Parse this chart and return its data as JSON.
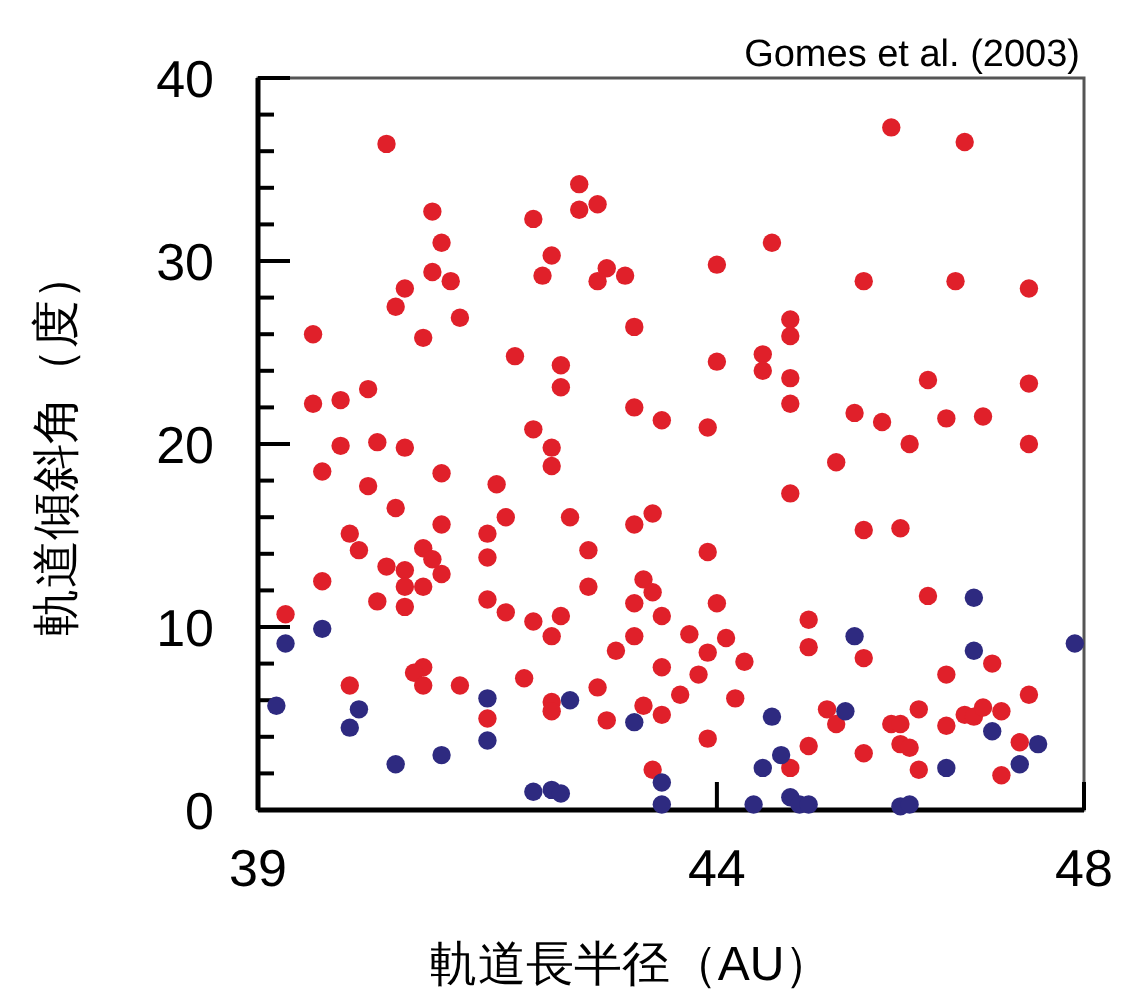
{
  "chart_data": {
    "type": "scatter",
    "xlabel": "軌道長半径（AU）",
    "ylabel": "軌道傾斜角（度）",
    "annotations": [
      "Gomes et al. (2003)"
    ],
    "xlim": [
      39,
      48
    ],
    "xticks": [
      39,
      44,
      48
    ],
    "ylim": [
      0,
      40
    ],
    "yticks": [
      0,
      {
        "value": 2,
        "label": null
      },
      {
        "value": 4,
        "label": null
      },
      {
        "value": 6,
        "label": null
      },
      {
        "value": 8,
        "label": null
      },
      10,
      {
        "value": 12,
        "label": null
      },
      {
        "value": 14,
        "label": null
      },
      {
        "value": 16,
        "label": null
      },
      {
        "value": 18,
        "label": null
      },
      20,
      {
        "value": 22,
        "label": null
      },
      {
        "value": 24,
        "label": null
      },
      {
        "value": 26,
        "label": null
      },
      {
        "value": 28,
        "label": null
      },
      30,
      {
        "value": 32,
        "label": null
      },
      {
        "value": 34,
        "label": null
      },
      {
        "value": 36,
        "label": null
      },
      {
        "value": 38,
        "label": null
      },
      40
    ],
    "grid": false,
    "marker": "circle",
    "series": [
      {
        "color": "#e0202a",
        "x": [
          40.4,
          40.9,
          41.0,
          40.9,
          41.1,
          40.6,
          40.5,
          41.2,
          40.8,
          39.6,
          41.8,
          42.3,
          42.3,
          40.2,
          39.9,
          39.6,
          42.0,
          42.5,
          42.5,
          42.7,
          42.2,
          42.1,
          42.8,
          42.7,
          43.0,
          43.1,
          43.1,
          42.0,
          42.2,
          39.9,
          40.3,
          40.6,
          45.9,
          46.7,
          44.6,
          44.0,
          45.6,
          46.6,
          47.4,
          44.8,
          44.8,
          44.0,
          44.5,
          44.5,
          44.8,
          46.3,
          47.4,
          43.4,
          43.9,
          44.8,
          45.5,
          45.8,
          46.5,
          46.9,
          46.1,
          47.4,
          45.3,
          42.2,
          39.7,
          40.2,
          41.0,
          41.6,
          40.5,
          41.0,
          41.7,
          42.4,
          41.5,
          40.0,
          40.1,
          43.1,
          42.6,
          40.8,
          40.9,
          41.5,
          40.4,
          40.6,
          41.0,
          39.7,
          40.6,
          40.8,
          42.6,
          40.3,
          40.6,
          41.5,
          41.7,
          42.0,
          42.3,
          42.2,
          43.1,
          43.1,
          39.3,
          42.9,
          40.8,
          40.7,
          40.8,
          40.0,
          41.2,
          41.9,
          42.7,
          42.2,
          42.2,
          41.5,
          42.8,
          44.8,
          43.3,
          45.6,
          46.0,
          43.9,
          43.2,
          43.3,
          44.0,
          43.4,
          46.3,
          45.0,
          43.7,
          44.1,
          43.9,
          45.0,
          44.3,
          43.4,
          45.6,
          43.8,
          46.5,
          47.0,
          43.6,
          44.2,
          47.4,
          43.2,
          43.4,
          45.2,
          45.3,
          43.9,
          45.9,
          46.0,
          46.2,
          46.5,
          46.7,
          46.8,
          46.9,
          47.1,
          46.0,
          46.1,
          45.0,
          45.6,
          47.3,
          43.3,
          44.8,
          46.2,
          47.1
        ],
        "values": [
          36.4,
          32.7,
          31.0,
          29.4,
          28.9,
          28.5,
          27.5,
          26.9,
          25.8,
          26.0,
          24.8,
          24.3,
          23.1,
          23.0,
          22.4,
          22.2,
          32.3,
          34.2,
          32.8,
          33.1,
          30.3,
          29.2,
          29.6,
          28.9,
          29.2,
          26.4,
          22.0,
          20.8,
          19.8,
          19.9,
          20.1,
          19.8,
          37.3,
          36.5,
          31.0,
          29.8,
          28.9,
          28.9,
          28.5,
          26.8,
          25.9,
          24.5,
          24.9,
          24.0,
          23.6,
          23.5,
          23.3,
          21.3,
          20.9,
          22.2,
          21.7,
          21.2,
          21.4,
          21.5,
          20.0,
          20.0,
          19.0,
          18.8,
          18.5,
          17.7,
          18.4,
          17.8,
          16.5,
          15.6,
          16.0,
          16.0,
          15.1,
          15.1,
          14.2,
          15.6,
          14.2,
          14.3,
          13.7,
          13.8,
          13.3,
          13.1,
          12.9,
          12.5,
          12.2,
          12.2,
          12.2,
          11.4,
          11.1,
          11.5,
          10.8,
          10.3,
          10.6,
          9.5,
          11.3,
          9.5,
          10.7,
          8.7,
          7.8,
          7.5,
          6.8,
          6.8,
          6.8,
          7.2,
          6.7,
          5.9,
          5.4,
          5.0,
          4.9,
          17.3,
          16.2,
          15.3,
          15.4,
          14.1,
          12.6,
          11.9,
          11.3,
          10.6,
          11.7,
          10.4,
          9.6,
          9.4,
          8.6,
          8.9,
          8.1,
          7.8,
          8.3,
          7.4,
          7.4,
          8.0,
          6.3,
          6.1,
          6.3,
          5.7,
          5.2,
          5.5,
          4.7,
          3.9,
          4.7,
          4.7,
          5.5,
          4.6,
          5.2,
          5.1,
          5.6,
          5.4,
          3.6,
          3.4,
          3.5,
          3.1,
          3.7,
          2.2,
          2.3,
          2.2,
          1.9
        ]
      },
      {
        "color": "#2e2a80",
        "x": [
          39.3,
          39.7,
          39.2,
          40.1,
          40.0,
          41.5,
          42.4,
          41.5,
          41.0,
          40.5,
          42.0,
          42.2,
          42.3,
          43.1,
          46.8,
          45.5,
          46.8,
          47.9,
          44.6,
          45.4,
          47.0,
          47.5,
          44.7,
          44.5,
          46.5,
          47.3,
          43.4,
          43.4,
          44.4,
          44.8,
          44.9,
          45.0,
          46.0,
          46.1
        ],
        "values": [
          9.1,
          9.9,
          5.7,
          5.5,
          4.5,
          6.1,
          6.0,
          3.8,
          3.0,
          2.5,
          1.0,
          1.1,
          0.9,
          4.8,
          11.6,
          9.5,
          8.7,
          9.1,
          5.1,
          5.4,
          4.3,
          3.6,
          3.0,
          2.3,
          2.3,
          2.5,
          1.5,
          0.3,
          0.3,
          0.7,
          0.3,
          0.3,
          0.2,
          0.3
        ]
      }
    ]
  }
}
